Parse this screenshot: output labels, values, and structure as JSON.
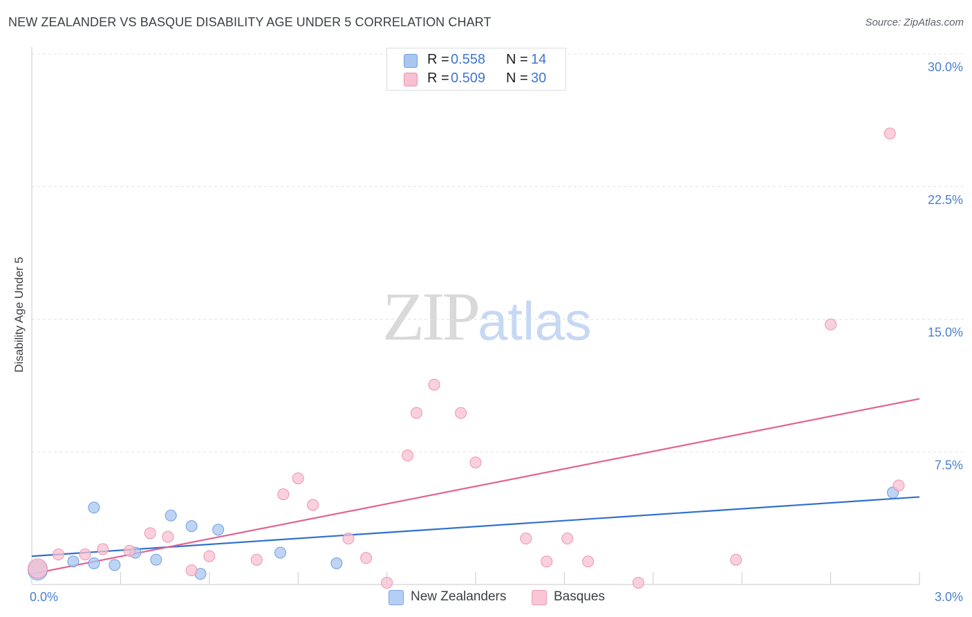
{
  "title": "NEW ZEALANDER VS BASQUE DISABILITY AGE UNDER 5 CORRELATION CHART",
  "source": "Source: ZipAtlas.com",
  "watermark": {
    "zip": "ZIP",
    "atlas": "atlas"
  },
  "legend": {
    "rows": [
      {
        "r_label": "R =",
        "r_value": "0.558",
        "n_label": "N =",
        "n_value": "14",
        "color": "#a8c6f0",
        "border": "#6e9fe0"
      },
      {
        "r_label": "R =",
        "r_value": "0.509",
        "n_label": "N =",
        "n_value": "30",
        "color": "#f8c0d1",
        "border": "#ec93b0"
      }
    ]
  },
  "bottom_legend": [
    {
      "label": "New Zealanders",
      "color": "#b4cff4",
      "border": "#7aa6e0"
    },
    {
      "label": "Basques",
      "color": "#f9c6d5",
      "border": "#ee9ab5"
    }
  ],
  "chart_data": {
    "type": "scatter",
    "title": "NEW ZEALANDER VS BASQUE DISABILITY AGE UNDER 5 CORRELATION CHART",
    "xlabel": "",
    "ylabel": "Disability Age Under 5",
    "xlim": [
      0.0,
      3.0
    ],
    "ylim": [
      0.0,
      30.0
    ],
    "x_ticks": [
      {
        "value": 0.0,
        "label": "0.0%"
      },
      {
        "value": 3.0,
        "label": "3.0%"
      }
    ],
    "y_ticks": [
      {
        "value": 7.5,
        "label": "7.5%"
      },
      {
        "value": 15.0,
        "label": "15.0%"
      },
      {
        "value": 22.5,
        "label": "22.5%"
      },
      {
        "value": 30.0,
        "label": "30.0%"
      }
    ],
    "series": [
      {
        "name": "New Zealanders",
        "color": "#a8c6f0",
        "stroke": "#6e9fe0",
        "line_color": "#2f6fcf",
        "trend": {
          "x0": 0.0,
          "y0": 1.6,
          "x1": 3.0,
          "y1": 4.95
        },
        "points": [
          {
            "x": 0.02,
            "y": 0.8,
            "size": "large"
          },
          {
            "x": 0.14,
            "y": 1.3
          },
          {
            "x": 0.21,
            "y": 1.2
          },
          {
            "x": 0.21,
            "y": 4.35
          },
          {
            "x": 0.28,
            "y": 1.1
          },
          {
            "x": 0.35,
            "y": 1.8
          },
          {
            "x": 0.42,
            "y": 1.4
          },
          {
            "x": 0.47,
            "y": 3.9
          },
          {
            "x": 0.54,
            "y": 3.3
          },
          {
            "x": 0.57,
            "y": 0.6
          },
          {
            "x": 0.63,
            "y": 3.1
          },
          {
            "x": 0.84,
            "y": 1.8
          },
          {
            "x": 1.03,
            "y": 1.2
          },
          {
            "x": 2.91,
            "y": 5.2
          }
        ]
      },
      {
        "name": "Basques",
        "color": "#f8c0d1",
        "stroke": "#ec93b0",
        "line_color": "#e2628f",
        "trend": {
          "x0": 0.0,
          "y0": 0.6,
          "x1": 3.0,
          "y1": 10.5
        },
        "points": [
          {
            "x": 0.02,
            "y": 0.9,
            "size": "large"
          },
          {
            "x": 0.09,
            "y": 1.7
          },
          {
            "x": 0.18,
            "y": 1.7
          },
          {
            "x": 0.24,
            "y": 2.0
          },
          {
            "x": 0.33,
            "y": 1.9
          },
          {
            "x": 0.4,
            "y": 2.9
          },
          {
            "x": 0.46,
            "y": 2.7
          },
          {
            "x": 0.54,
            "y": 0.8
          },
          {
            "x": 0.6,
            "y": 1.6
          },
          {
            "x": 0.76,
            "y": 1.4
          },
          {
            "x": 0.85,
            "y": 5.1
          },
          {
            "x": 0.9,
            "y": 6.0
          },
          {
            "x": 0.95,
            "y": 4.5
          },
          {
            "x": 1.07,
            "y": 2.6
          },
          {
            "x": 1.13,
            "y": 1.5
          },
          {
            "x": 1.2,
            "y": 0.1
          },
          {
            "x": 1.27,
            "y": 7.3
          },
          {
            "x": 1.3,
            "y": 9.7
          },
          {
            "x": 1.36,
            "y": 11.3
          },
          {
            "x": 1.45,
            "y": 9.7
          },
          {
            "x": 1.5,
            "y": 6.9
          },
          {
            "x": 1.67,
            "y": 2.6
          },
          {
            "x": 1.74,
            "y": 1.3
          },
          {
            "x": 1.81,
            "y": 2.6
          },
          {
            "x": 1.88,
            "y": 1.3
          },
          {
            "x": 2.05,
            "y": 0.1
          },
          {
            "x": 2.38,
            "y": 1.4
          },
          {
            "x": 2.7,
            "y": 14.7
          },
          {
            "x": 2.9,
            "y": 25.5
          },
          {
            "x": 2.93,
            "y": 5.6
          }
        ]
      }
    ]
  }
}
